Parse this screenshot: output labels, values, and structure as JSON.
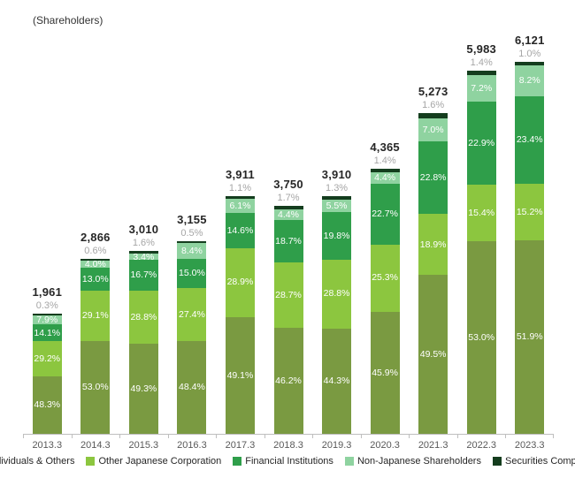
{
  "title": "(Shareholders)",
  "chart_data": {
    "type": "bar",
    "stacked": true,
    "title": "(Shareholders)",
    "xlabel": "",
    "ylabel": "Shareholders",
    "ylim": [
      0,
      6121
    ],
    "grid": false,
    "legend_position": "bottom",
    "categories": [
      "2013.3",
      "2014.3",
      "2015.3",
      "2016.3",
      "2017.3",
      "2018.3",
      "2019.3",
      "2020.3",
      "2021.3",
      "2022.3",
      "2023.3"
    ],
    "totals": [
      1961,
      2866,
      3010,
      3155,
      3911,
      3750,
      3910,
      4365,
      5273,
      5983,
      6121
    ],
    "totals_formatted": [
      "1,961",
      "2,866",
      "3,010",
      "3,155",
      "3,911",
      "3,750",
      "3,910",
      "4,365",
      "5,273",
      "5,983",
      "6,121"
    ],
    "value_suffix": "%",
    "series": [
      {
        "name": "Individuals & Others",
        "color": "#7a9a41",
        "values": [
          48.3,
          53.0,
          49.3,
          48.4,
          49.1,
          46.2,
          44.3,
          45.9,
          49.5,
          53.0,
          51.9
        ]
      },
      {
        "name": "Other Japanese Corporation",
        "color": "#8cc63f",
        "values": [
          29.2,
          29.1,
          28.8,
          27.4,
          28.9,
          28.7,
          28.8,
          25.3,
          18.9,
          15.4,
          15.2
        ]
      },
      {
        "name": "Financial Institutions",
        "color": "#2f9e4a",
        "values": [
          14.1,
          13.0,
          16.7,
          15.0,
          14.6,
          18.7,
          19.8,
          22.7,
          22.8,
          22.9,
          23.4
        ]
      },
      {
        "name": "Non-Japanese Shareholders",
        "color": "#8fd3a0",
        "values": [
          7.9,
          4.0,
          3.4,
          8.4,
          6.1,
          4.4,
          5.5,
          4.4,
          7.0,
          7.2,
          8.2
        ]
      },
      {
        "name": "Securities Companies",
        "color": "#143d1e",
        "values": [
          0.3,
          0.6,
          1.6,
          0.5,
          1.1,
          1.7,
          1.3,
          1.4,
          1.6,
          1.4,
          1.0
        ]
      }
    ],
    "colors": {
      "individuals_and_others": "#7a9a41",
      "other_japanese_corporation": "#8cc63f",
      "financial_institutions": "#2f9e4a",
      "non_japanese_shareholders": "#8fd3a0",
      "securities_companies": "#143d1e",
      "total_label": "#262626",
      "securities_label": "#a6a6a6",
      "axis": "#bfbfbf",
      "tick_label": "#595959"
    }
  },
  "legend": {
    "items": [
      {
        "label": "Individuals & Others",
        "color": "#7a9a41"
      },
      {
        "label": "Other Japanese Corporation",
        "color": "#8cc63f"
      },
      {
        "label": "Financial Institutions",
        "color": "#2f9e4a"
      },
      {
        "label": "Non-Japanese Shareholders",
        "color": "#8fd3a0"
      },
      {
        "label": "Securities Companies",
        "color": "#143d1e"
      }
    ]
  }
}
